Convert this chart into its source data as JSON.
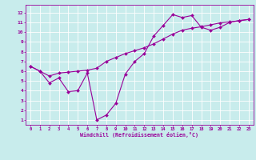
{
  "xlabel": "Windchill (Refroidissement éolien,°C)",
  "background_color": "#c8ecec",
  "line_color": "#990099",
  "grid_color": "#ffffff",
  "x_ticks": [
    0,
    1,
    2,
    3,
    4,
    5,
    6,
    7,
    8,
    9,
    10,
    11,
    12,
    13,
    14,
    15,
    16,
    17,
    18,
    19,
    20,
    21,
    22,
    23
  ],
  "y_ticks": [
    1,
    2,
    3,
    4,
    5,
    6,
    7,
    8,
    9,
    10,
    11,
    12
  ],
  "ylim": [
    0.5,
    12.8
  ],
  "xlim": [
    -0.5,
    23.5
  ],
  "line1_x": [
    0,
    1,
    2,
    3,
    4,
    5,
    6,
    7,
    8,
    9,
    10,
    11,
    12,
    13,
    14,
    15,
    16,
    17,
    18,
    19,
    20,
    21,
    22,
    23
  ],
  "line1_y": [
    6.5,
    6.0,
    4.8,
    5.3,
    3.9,
    4.0,
    5.8,
    1.0,
    1.5,
    2.7,
    5.7,
    7.0,
    7.8,
    9.6,
    10.7,
    11.8,
    11.5,
    11.7,
    10.5,
    10.2,
    10.5,
    11.0,
    11.2,
    11.3
  ],
  "line2_x": [
    0,
    1,
    2,
    3,
    4,
    5,
    6,
    7,
    8,
    9,
    10,
    11,
    12,
    13,
    14,
    15,
    16,
    17,
    18,
    19,
    20,
    21,
    22,
    23
  ],
  "line2_y": [
    6.5,
    6.0,
    5.5,
    5.8,
    5.9,
    6.0,
    6.1,
    6.3,
    7.0,
    7.4,
    7.8,
    8.1,
    8.4,
    8.8,
    9.3,
    9.8,
    10.2,
    10.4,
    10.55,
    10.75,
    10.95,
    11.05,
    11.15,
    11.3
  ],
  "marker_size": 2.0,
  "line_width": 0.8
}
